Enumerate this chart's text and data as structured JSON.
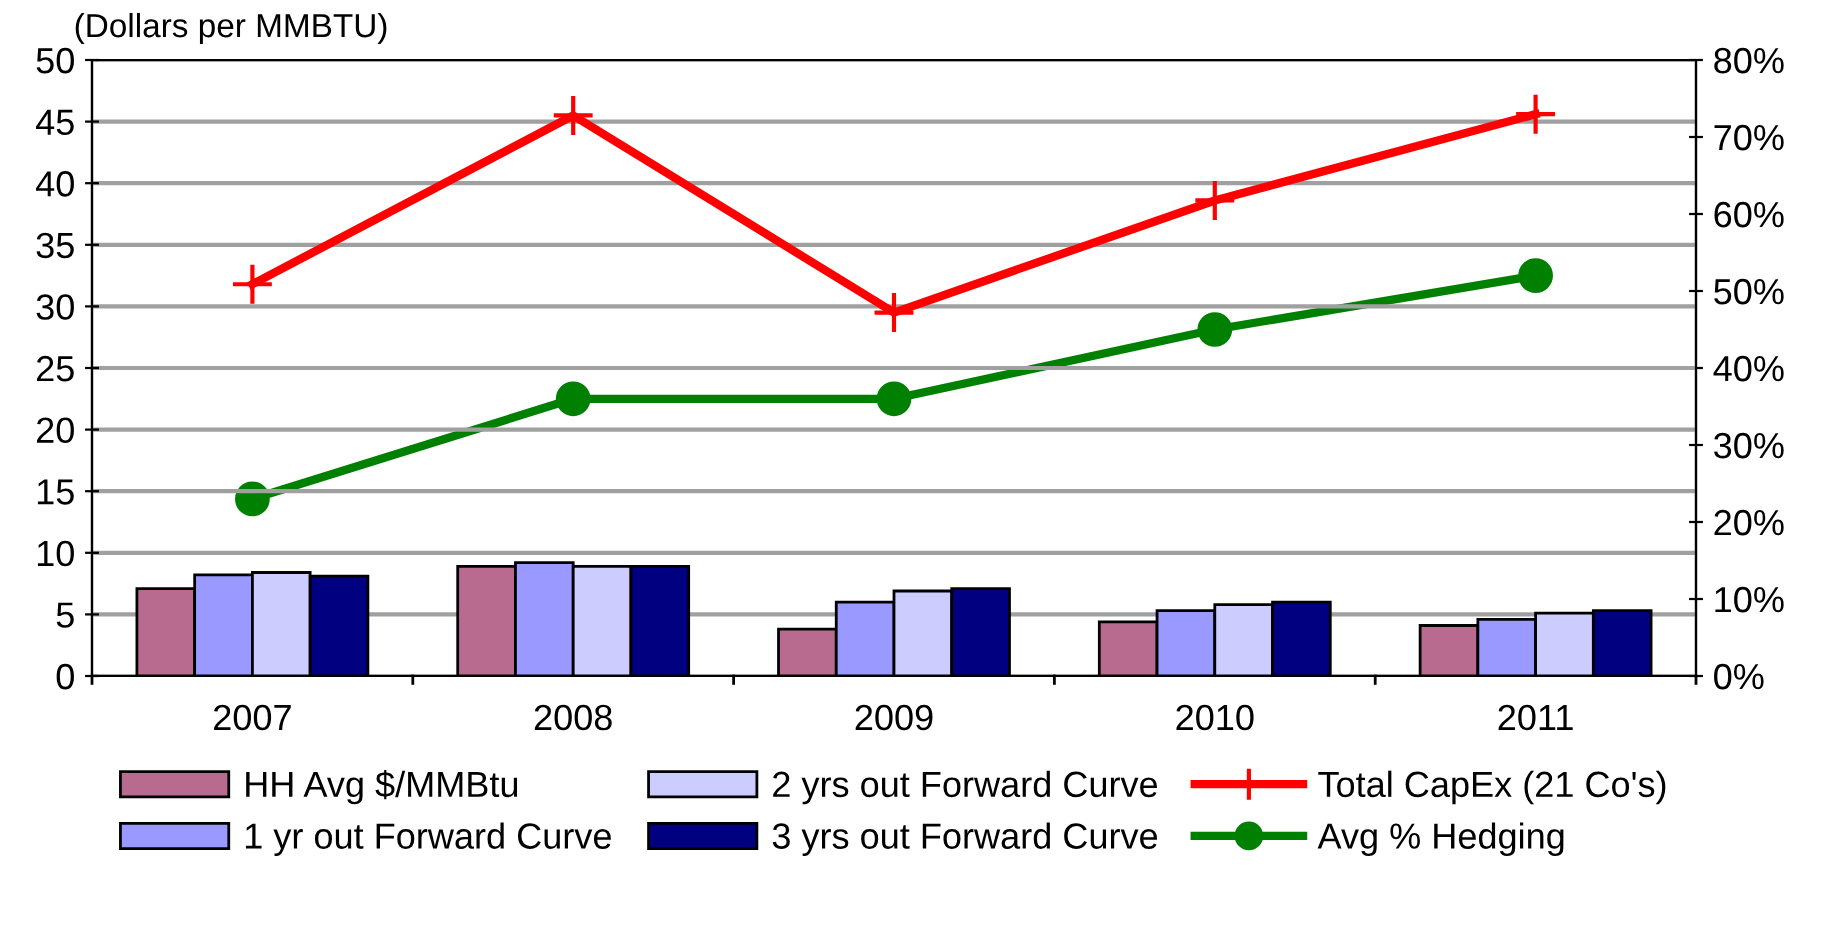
{
  "chart_data": {
    "type": "bar",
    "ylabel": "(Dollars per MMBTU)",
    "categories": [
      "2007",
      "2008",
      "2009",
      "2010",
      "2011"
    ],
    "series": [
      {
        "name": "HH Avg $/MMBtu",
        "color": "#b86b8f",
        "values": [
          7.1,
          8.9,
          3.8,
          4.4,
          4.1
        ]
      },
      {
        "name": "1 yr out Forward Curve",
        "color": "#9999ff",
        "values": [
          8.2,
          9.2,
          6.0,
          5.3,
          4.6
        ]
      },
      {
        "name": "2 yrs out Forward Curve",
        "color": "#ccccff",
        "values": [
          8.4,
          8.9,
          6.9,
          5.8,
          5.1
        ]
      },
      {
        "name": "3 yrs out Forward Curve",
        "color": "#000080",
        "values": [
          8.1,
          8.9,
          7.1,
          6.0,
          5.3
        ]
      },
      {
        "name": "Total CapEx (21 Co's)",
        "type": "line",
        "color": "#ff0000",
        "marker": "cross",
        "values": [
          31.8,
          45.5,
          29.5,
          38.6,
          45.6
        ]
      },
      {
        "name": "Avg % Hedging",
        "type": "line",
        "color": "#008000",
        "marker": "circle",
        "axis": "y2",
        "values": [
          23,
          36,
          36,
          45,
          52
        ]
      }
    ],
    "ylim": [
      0,
      50
    ],
    "yticks": [
      0,
      5,
      10,
      15,
      20,
      25,
      30,
      35,
      40,
      45,
      50
    ],
    "y2lim": [
      0,
      80
    ],
    "y2ticks": [
      {
        "value": 0,
        "label": "0%"
      },
      {
        "value": 10,
        "label": "10%"
      },
      {
        "value": 20,
        "label": "20%"
      },
      {
        "value": 30,
        "label": "30%"
      },
      {
        "value": 40,
        "label": "40%"
      },
      {
        "value": 50,
        "label": "50%"
      },
      {
        "value": 60,
        "label": "60%"
      },
      {
        "value": 70,
        "label": "70%"
      },
      {
        "value": 80,
        "label": "80%"
      }
    ],
    "grid": "y",
    "legend": "bottom"
  }
}
